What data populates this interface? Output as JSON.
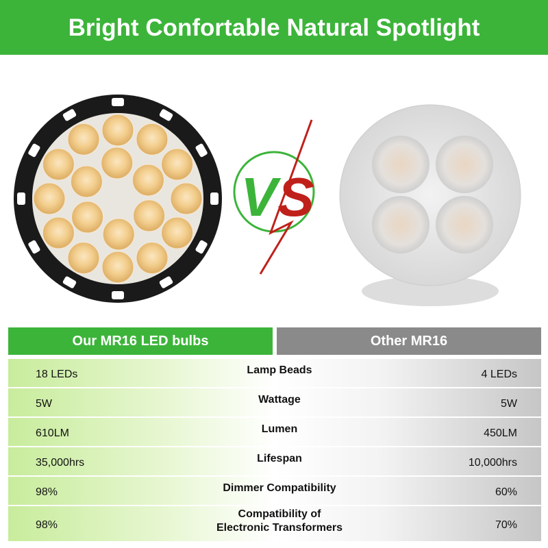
{
  "header": {
    "title": "Bright Confortable Natural Spotlight"
  },
  "vs": [
    "V",
    "S"
  ],
  "table": {
    "columns": [
      "Our MR16 LED bulbs",
      "Other MR16"
    ],
    "rows": [
      [
        "18 LEDs",
        "Lamp Beads",
        "4 LEDs"
      ],
      [
        "5W",
        "Wattage",
        "5W"
      ],
      [
        "610LM",
        "Lumen",
        "450LM"
      ],
      [
        "35,000hrs",
        "Lifespan",
        "10,000hrs"
      ],
      [
        "98%",
        "Dimmer Compatibility",
        "60%"
      ],
      [
        "98%",
        "Compatibility of\nElectronic Transformers",
        "70%"
      ]
    ]
  }
}
